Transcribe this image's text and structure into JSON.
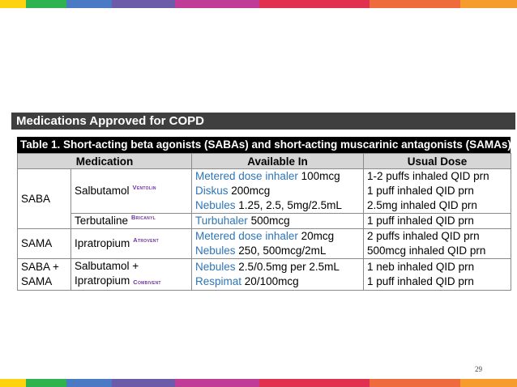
{
  "colors": {
    "stripe": [
      "#fdd20f",
      "#2eb34f",
      "#4a7ac3",
      "#6b5ba8",
      "#c03c96",
      "#e2314f",
      "#ef6b3d",
      "#f59c2d"
    ],
    "header_bar": "#3f3f3f",
    "blue_text": "#2e75b6",
    "brand_text": "#7030a0"
  },
  "title": "Medications Approved for COPD",
  "table": {
    "caption": "Table 1. Short-acting beta agonists (SABAs) and short-acting muscarinic antagonists (SAMAs)",
    "headers": {
      "medication": "Medication",
      "available": "Available In",
      "dose": "Usual Dose"
    },
    "rows": {
      "saba": {
        "class": "SABA",
        "salbutamol": {
          "drug": "Salbutamol",
          "brand": "Ventolin",
          "forms": [
            {
              "name": "Metered dose inhaler",
              "strength": " 100mcg"
            },
            {
              "name": "Diskus",
              "strength": " 200mcg"
            },
            {
              "name": "Nebules",
              "strength": " 1.25, 2.5, 5mg/2.5mL"
            }
          ],
          "doses": [
            "1-2 puffs inhaled QID prn",
            "1 puff inhaled QID prn",
            "2.5mg inhaled QID prn"
          ]
        },
        "terbutaline": {
          "drug": "Terbutaline",
          "brand": "Bricanyl",
          "forms": [
            {
              "name": "Turbuhaler",
              "strength": " 500mcg"
            }
          ],
          "doses": [
            "1 puff inhaled QID prn"
          ]
        }
      },
      "sama": {
        "class": "SAMA",
        "drug": "Ipratropium",
        "brand": "Atrovent",
        "forms": [
          {
            "name": "Metered dose inhaler",
            "strength": " 20mcg"
          },
          {
            "name": "Nebules",
            "strength": " 250, 500mcg/2mL"
          }
        ],
        "doses": [
          "2 puffs inhaled QID prn",
          "500mcg inhaled QID prn"
        ]
      },
      "combo": {
        "class_line1": "SABA +",
        "class_line2": "SAMA",
        "drug_line1": "Salbutamol +",
        "drug_line2": "Ipratropium",
        "brand": "Combivent",
        "forms": [
          {
            "name": "Nebules",
            "strength": " 2.5/0.5mg per 2.5mL"
          },
          {
            "name": "Respimat",
            "strength": " 20/100mcg"
          }
        ],
        "doses": [
          "1 neb inhaled QID prn",
          "1 puff inhaled QID prn"
        ]
      }
    }
  },
  "page_number": "29"
}
